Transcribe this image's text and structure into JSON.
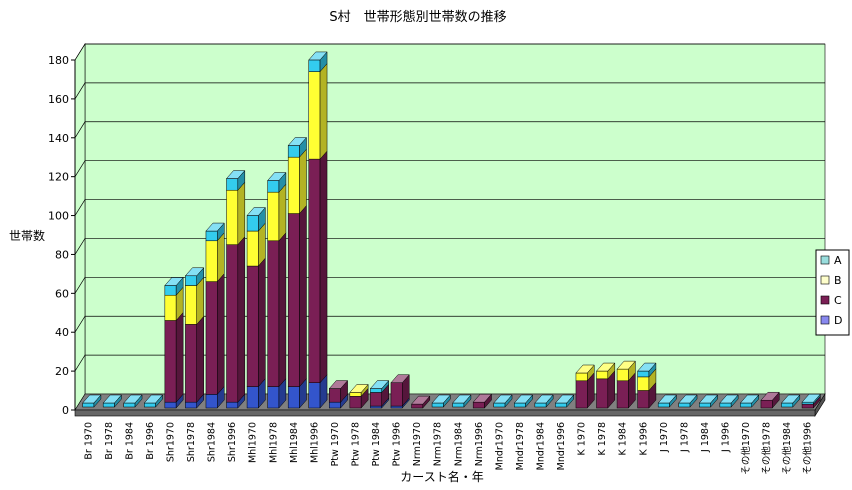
{
  "chart_data": {
    "type": "bar",
    "stacked": true,
    "three_d": true,
    "title": "S村　世帯形態別世帯数の推移",
    "xlabel": "カースト名・年",
    "ylabel": "世帯数",
    "ylim": [
      0,
      180
    ],
    "yticks": [
      0,
      20,
      40,
      60,
      80,
      100,
      120,
      140,
      160,
      180
    ],
    "grid": true,
    "legend_position": "right",
    "categories": [
      "Br 1970",
      "Br 1978",
      "Br 1984",
      "Br 1996",
      "Shr1970",
      "Shr1978",
      "Shr1984",
      "Shr1996",
      "Mhl1970",
      "Mhl1978",
      "Mhl1984",
      "Mhl1996",
      "Ptw 1970",
      "Ptw 1978",
      "Ptw 1984",
      "Ptw 1996",
      "Nrm1970",
      "Nrm1978",
      "Nrm1984",
      "Nrm1996",
      "Mndr1970",
      "Mndr1978",
      "Mndr1984",
      "Mndr1996",
      "K 1970",
      "K 1978",
      "K 1984",
      "K 1996",
      "J 1970",
      "J 1978",
      "J 1984",
      "J 1996",
      "その他1970",
      "その他1978",
      "その他1984",
      "その他1996"
    ],
    "series": [
      {
        "name": "D",
        "values": [
          0,
          0,
          0,
          0,
          3,
          3,
          7,
          3,
          11,
          11,
          11,
          13,
          3,
          0,
          1,
          1,
          0,
          0,
          0,
          0,
          0,
          0,
          0,
          0,
          0,
          0,
          0,
          0,
          0,
          0,
          0,
          0,
          0,
          0,
          0,
          0
        ]
      },
      {
        "name": "C",
        "values": [
          0,
          0,
          0,
          0,
          42,
          40,
          58,
          81,
          62,
          75,
          89,
          115,
          7,
          6,
          7,
          12,
          2,
          0,
          0,
          3,
          0,
          0,
          0,
          0,
          14,
          15,
          14,
          9,
          0,
          0,
          0,
          0,
          0,
          4,
          0,
          2
        ]
      },
      {
        "name": "B",
        "values": [
          0,
          0,
          0,
          0,
          13,
          20,
          21,
          28,
          18,
          25,
          29,
          45,
          0,
          2,
          0,
          0,
          0,
          0,
          0,
          0,
          0,
          0,
          0,
          0,
          4,
          4,
          6,
          7,
          0,
          0,
          0,
          0,
          0,
          0,
          0,
          0
        ]
      },
      {
        "name": "A",
        "values": [
          0,
          0,
          0,
          0,
          5,
          5,
          5,
          6,
          8,
          6,
          6,
          6,
          0,
          0,
          2,
          0,
          0,
          0,
          0,
          0,
          0,
          0,
          0,
          0,
          0,
          0,
          0,
          3,
          0,
          0,
          0,
          0,
          0,
          0,
          0,
          1
        ]
      }
    ],
    "colors": {
      "A": "#33ccee",
      "B": "#ffff33",
      "C": "#7a1f55",
      "D": "#3355cc"
    },
    "legend_colors": {
      "A": "#99dddd",
      "B": "#ffffcc",
      "C": "#7a1f55",
      "D": "#8888ee"
    },
    "wall_color": "#ccffcc",
    "floor_color": "#808080"
  }
}
